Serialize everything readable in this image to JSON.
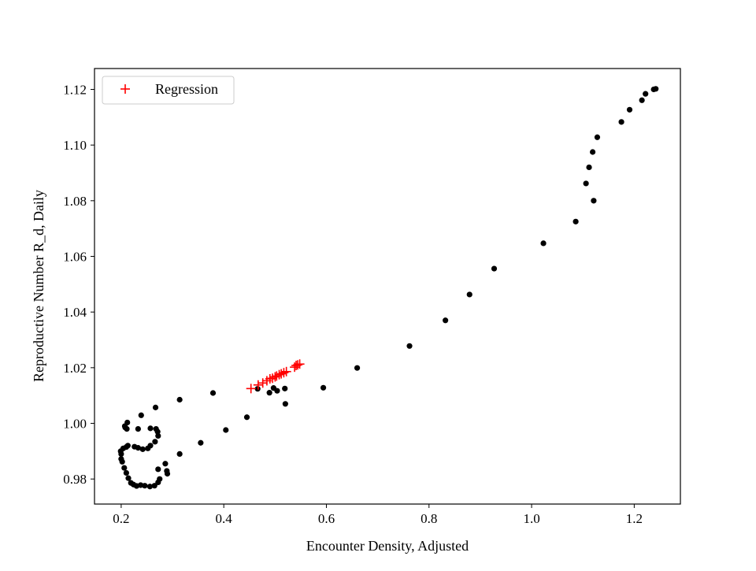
{
  "chart_data": {
    "type": "scatter",
    "title": "",
    "xlabel": "Encounter Density, Adjusted",
    "ylabel": "Reproductive Number R_d, Daily",
    "xlim": [
      0.148,
      1.29
    ],
    "ylim": [
      0.971,
      1.1275
    ],
    "xticks": [
      0.2,
      0.4,
      0.6,
      0.8,
      1.0,
      1.2
    ],
    "xtick_labels": [
      "0.2",
      "0.4",
      "0.6",
      "0.8",
      "1.0",
      "1.2"
    ],
    "yticks": [
      0.98,
      1.0,
      1.02,
      1.04,
      1.06,
      1.08,
      1.1,
      1.12
    ],
    "ytick_labels": [
      "0.98",
      "1.00",
      "1.02",
      "1.04",
      "1.06",
      "1.08",
      "1.10",
      "1.12"
    ],
    "grid": false,
    "legend_position": "top-left",
    "series": [
      {
        "marker": "dot",
        "color": "#000000",
        "points": [
          [
            1.242,
            1.1202
          ],
          [
            1.238,
            1.12
          ],
          [
            1.222,
            1.1184
          ],
          [
            1.215,
            1.1161
          ],
          [
            1.191,
            1.1127
          ],
          [
            1.175,
            1.1083
          ],
          [
            1.128,
            1.1028
          ],
          [
            1.119,
            1.0975
          ],
          [
            1.112,
            1.092
          ],
          [
            1.106,
            1.0862
          ],
          [
            1.121,
            1.08
          ],
          [
            1.086,
            1.0725
          ],
          [
            1.023,
            1.0647
          ],
          [
            0.927,
            1.0556
          ],
          [
            0.879,
            1.0463
          ],
          [
            0.832,
            1.037
          ],
          [
            0.762,
            1.0278
          ],
          [
            0.66,
            1.0199
          ],
          [
            0.594,
            1.0128
          ],
          [
            0.519,
            1.0125
          ],
          [
            0.52,
            1.007
          ],
          [
            0.504,
            1.0117
          ],
          [
            0.497,
            1.0127
          ],
          [
            0.489,
            1.011
          ],
          [
            0.466,
            1.0124
          ],
          [
            0.445,
            1.0022
          ],
          [
            0.404,
            0.9976
          ],
          [
            0.379,
            1.0109
          ],
          [
            0.355,
            0.993
          ],
          [
            0.314,
            0.989
          ],
          [
            0.314,
            1.0085
          ],
          [
            0.29,
            0.9819
          ],
          [
            0.289,
            0.9829
          ],
          [
            0.286,
            0.9855
          ],
          [
            0.275,
            0.98
          ],
          [
            0.272,
            0.9788
          ],
          [
            0.272,
            0.9835
          ],
          [
            0.265,
            0.9776
          ],
          [
            0.256,
            0.9773
          ],
          [
            0.246,
            0.9776
          ],
          [
            0.238,
            0.9778
          ],
          [
            0.23,
            0.9775
          ],
          [
            0.224,
            0.978
          ],
          [
            0.219,
            0.9786
          ],
          [
            0.214,
            0.9803
          ],
          [
            0.21,
            0.9822
          ],
          [
            0.206,
            0.984
          ],
          [
            0.202,
            0.9862
          ],
          [
            0.2,
            0.9872
          ],
          [
            0.2,
            0.989
          ],
          [
            0.199,
            0.99
          ],
          [
            0.204,
            0.991
          ],
          [
            0.21,
            0.9915
          ],
          [
            0.213,
            0.992
          ],
          [
            0.226,
            0.9916
          ],
          [
            0.233,
            0.9912
          ],
          [
            0.242,
            0.9907
          ],
          [
            0.252,
            0.991
          ],
          [
            0.257,
            0.992
          ],
          [
            0.266,
            0.9934
          ],
          [
            0.272,
            0.9955
          ],
          [
            0.271,
            0.997
          ],
          [
            0.268,
            0.998
          ],
          [
            0.257,
            0.9982
          ],
          [
            0.233,
            0.998
          ],
          [
            0.211,
            0.998
          ],
          [
            0.208,
            0.9985
          ],
          [
            0.212,
            1.0003
          ],
          [
            0.239,
            1.0029
          ],
          [
            0.267,
            1.0057
          ],
          [
            0.207,
            0.999
          ]
        ]
      },
      {
        "name": "Regression",
        "marker": "plus",
        "color": "#ff0000",
        "points": [
          [
            0.453,
            1.0125
          ],
          [
            0.467,
            1.0138
          ],
          [
            0.476,
            1.0145
          ],
          [
            0.484,
            1.0153
          ],
          [
            0.49,
            1.016
          ],
          [
            0.495,
            1.0162
          ],
          [
            0.5,
            1.0167
          ],
          [
            0.503,
            1.017
          ],
          [
            0.508,
            1.0175
          ],
          [
            0.512,
            1.0178
          ],
          [
            0.517,
            1.0182
          ],
          [
            0.522,
            1.0186
          ],
          [
            0.538,
            1.0202
          ],
          [
            0.541,
            1.0208
          ],
          [
            0.544,
            1.021
          ],
          [
            0.548,
            1.0213
          ]
        ]
      }
    ]
  }
}
